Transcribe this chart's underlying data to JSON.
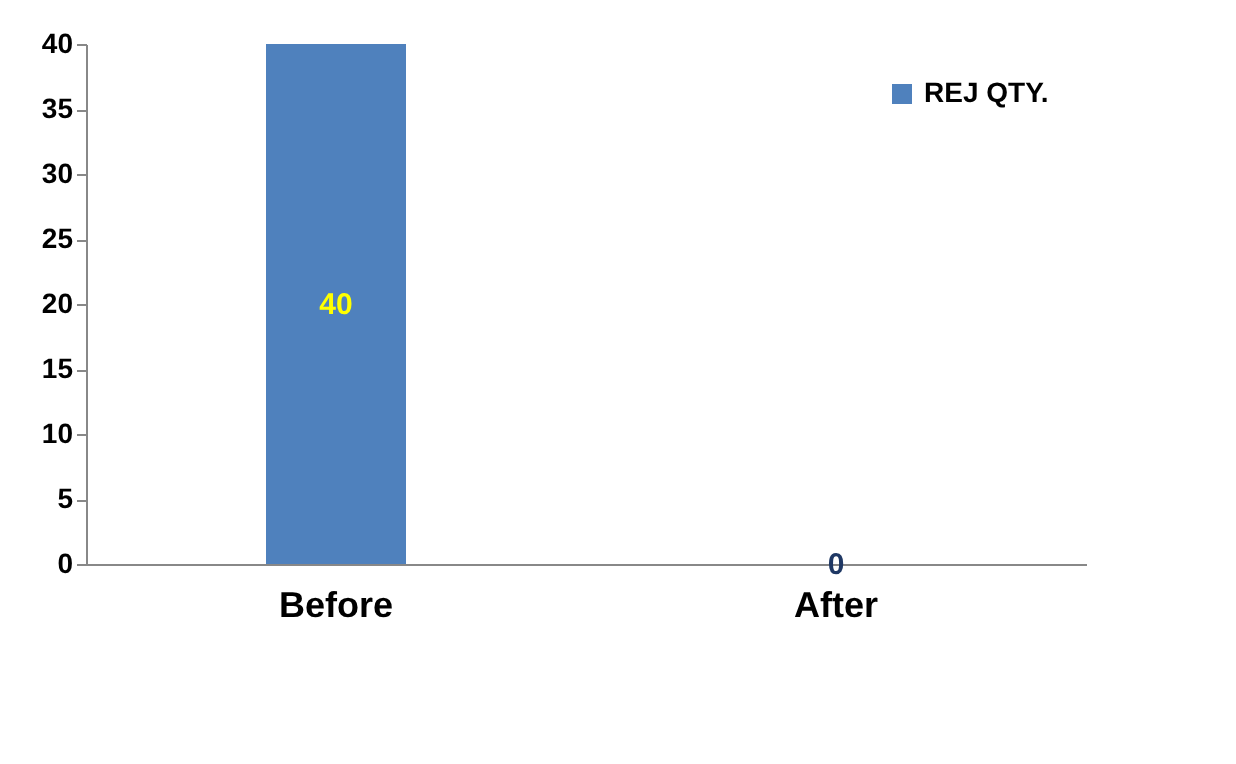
{
  "chart_data": {
    "type": "bar",
    "categories": [
      "Before",
      "After"
    ],
    "series": [
      {
        "name": "REJ QTY.",
        "color": "#4f81bd",
        "values": [
          40,
          0
        ]
      }
    ],
    "ylim": [
      0,
      40
    ],
    "yticks": [
      0,
      5,
      10,
      15,
      20,
      25,
      30,
      35,
      40
    ],
    "grid": false,
    "legend": "top right",
    "data_labels": true
  }
}
